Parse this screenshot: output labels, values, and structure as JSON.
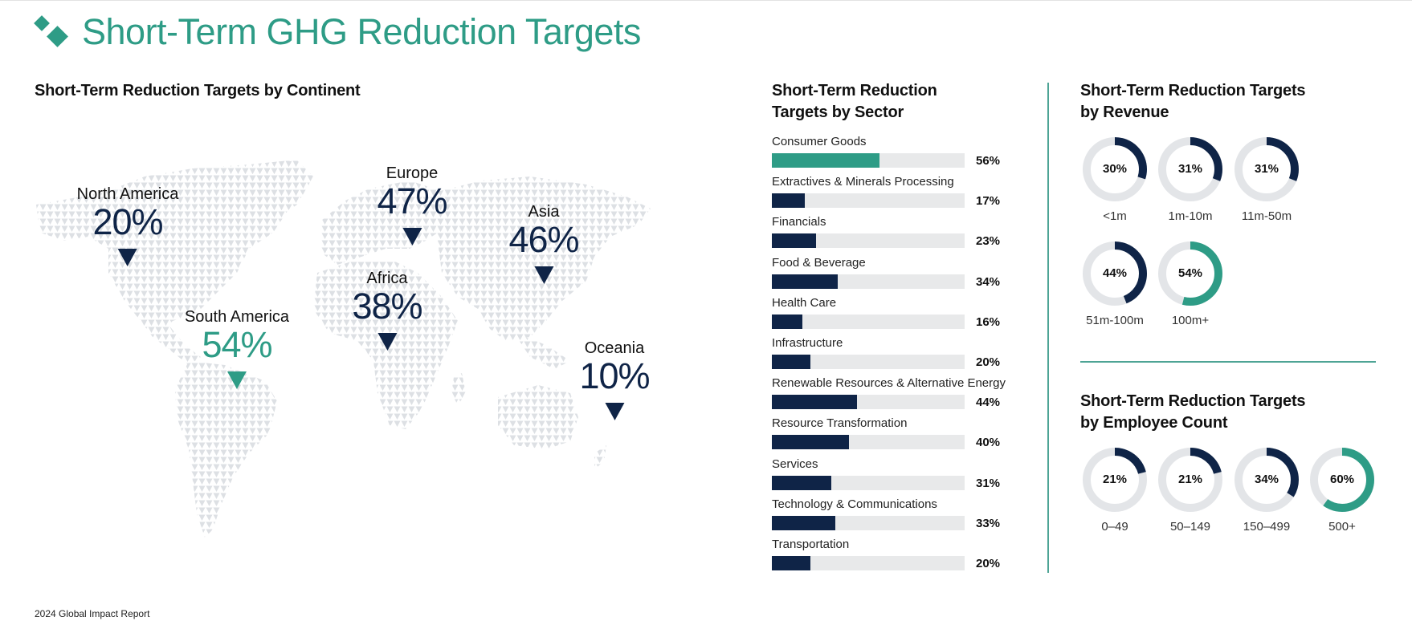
{
  "page": {
    "title": "Short-Term GHG Reduction Targets",
    "footer": "2024 Global Impact Report",
    "colors": {
      "teal": "#2e9c86",
      "navy": "#0f2447",
      "track": "#e8e9ea",
      "map_dots": "#dcdfe3"
    }
  },
  "continent_section": {
    "title": "Short-Term Reduction Targets by Continent",
    "continents": [
      {
        "name": "North America",
        "value": "20%",
        "highlight": false
      },
      {
        "name": "Europe",
        "value": "47%",
        "highlight": false
      },
      {
        "name": "Asia",
        "value": "46%",
        "highlight": false
      },
      {
        "name": "Africa",
        "value": "38%",
        "highlight": false
      },
      {
        "name": "South America",
        "value": "54%",
        "highlight": true
      },
      {
        "name": "Oceania",
        "value": "10%",
        "highlight": false
      }
    ]
  },
  "sector_section": {
    "title_line1": "Short-Term Reduction",
    "title_line2": "Targets by Sector",
    "sectors": [
      {
        "label": "Consumer Goods",
        "value": "56%",
        "pct": 56,
        "highlight": true
      },
      {
        "label": "Extractives & Minerals Processing",
        "value": "17%",
        "pct": 17
      },
      {
        "label": "Financials",
        "value": "23%",
        "pct": 23
      },
      {
        "label": "Food & Beverage",
        "value": "34%",
        "pct": 34
      },
      {
        "label": "Health Care",
        "value": "16%",
        "pct": 16
      },
      {
        "label": "Infrastructure",
        "value": "20%",
        "pct": 20
      },
      {
        "label": "Renewable Resources & Alternative Energy",
        "value": "44%",
        "pct": 44
      },
      {
        "label": "Resource Transformation",
        "value": "40%",
        "pct": 40
      },
      {
        "label": "Services",
        "value": "31%",
        "pct": 31
      },
      {
        "label": "Technology & Communications",
        "value": "33%",
        "pct": 33
      },
      {
        "label": "Transportation",
        "value": "20%",
        "pct": 20
      }
    ]
  },
  "revenue_section": {
    "title_line1": "Short-Term Reduction Targets",
    "title_line2": "by Revenue",
    "items": [
      {
        "label": "<1m",
        "value": "30%",
        "pct": 30
      },
      {
        "label": "1m-10m",
        "value": "31%",
        "pct": 31
      },
      {
        "label": "11m-50m",
        "value": "31%",
        "pct": 31
      },
      {
        "label": "51m-100m",
        "value": "44%",
        "pct": 44
      },
      {
        "label": "100m+",
        "value": "54%",
        "pct": 54,
        "highlight": true
      }
    ]
  },
  "employee_section": {
    "title_line1": "Short-Term Reduction Targets",
    "title_line2": "by Employee Count",
    "items": [
      {
        "label": "0–49",
        "value": "21%",
        "pct": 21
      },
      {
        "label": "50–149",
        "value": "21%",
        "pct": 21
      },
      {
        "label": "150–499",
        "value": "34%",
        "pct": 34
      },
      {
        "label": "500+",
        "value": "60%",
        "pct": 60,
        "highlight": true
      }
    ]
  },
  "chart_data": [
    {
      "type": "map",
      "title": "Short-Term Reduction Targets by Continent",
      "categories": [
        "North America",
        "Europe",
        "Asia",
        "Africa",
        "South America",
        "Oceania"
      ],
      "values": [
        20,
        47,
        46,
        38,
        54,
        10
      ],
      "unit": "%",
      "highlight": "South America"
    },
    {
      "type": "bar",
      "orientation": "horizontal",
      "title": "Short-Term Reduction Targets by Sector",
      "categories": [
        "Consumer Goods",
        "Extractives & Minerals Processing",
        "Financials",
        "Food & Beverage",
        "Health Care",
        "Infrastructure",
        "Renewable Resources & Alternative Energy",
        "Resource Transformation",
        "Services",
        "Technology & Communications",
        "Transportation"
      ],
      "values": [
        56,
        17,
        23,
        34,
        16,
        20,
        44,
        40,
        31,
        33,
        20
      ],
      "unit": "%",
      "xlim": [
        0,
        100
      ],
      "highlight": "Consumer Goods"
    },
    {
      "type": "pie",
      "variant": "donut",
      "title": "Short-Term Reduction Targets by Revenue",
      "categories": [
        "<1m",
        "1m-10m",
        "11m-50m",
        "51m-100m",
        "100m+"
      ],
      "values": [
        30,
        31,
        31,
        44,
        54
      ],
      "unit": "%",
      "highlight": "100m+"
    },
    {
      "type": "pie",
      "variant": "donut",
      "title": "Short-Term Reduction Targets by Employee Count",
      "categories": [
        "0–49",
        "50–149",
        "150–499",
        "500+"
      ],
      "values": [
        21,
        21,
        34,
        60
      ],
      "unit": "%",
      "highlight": "500+"
    }
  ]
}
